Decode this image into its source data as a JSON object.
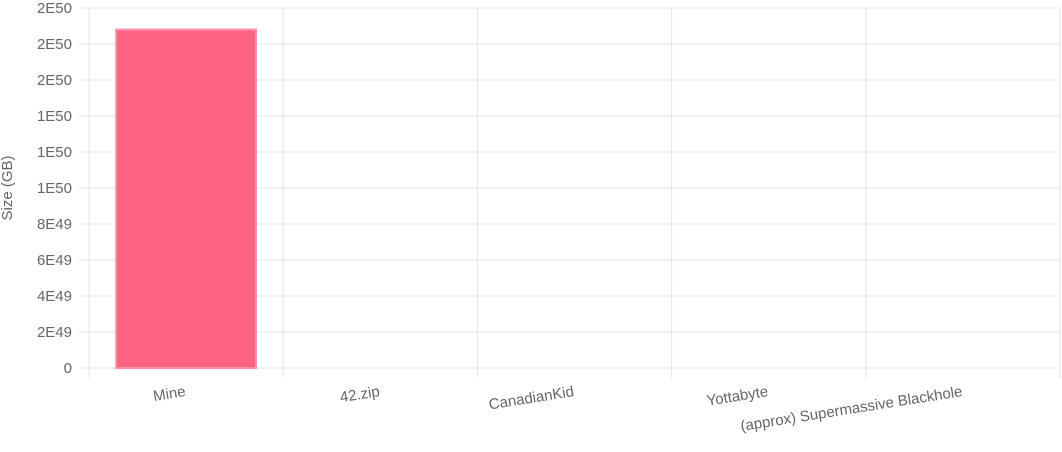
{
  "chart_data": {
    "type": "bar",
    "y_label": "Size (GB)",
    "categories": [
      "Mine",
      "42.zip",
      "CanadianKid",
      "Yottabyte",
      "(approx) Supermassive Blackhole"
    ],
    "values": [
      1.88e+50,
      0,
      0,
      0,
      0
    ],
    "color": "#ff6384",
    "ylim": [
      0,
      2e+50
    ],
    "yticks": [
      0,
      {
        "value": 2e+49,
        "label": "2E49"
      },
      {
        "value": 4e+49,
        "label": "4E49"
      },
      {
        "value": 6e+49,
        "label": "6E49"
      },
      {
        "value": 8e+49,
        "label": "8E49"
      },
      {
        "value": 1e+50,
        "label": "1E50"
      },
      {
        "value": 1.2e+50,
        "label": "1E50"
      },
      {
        "value": 1.4e+50,
        "label": "1E50"
      },
      {
        "value": 1.6e+50,
        "label": "2E50"
      },
      {
        "value": 1.8e+50,
        "label": "2E50"
      },
      {
        "value": 2e+50,
        "label": "2E50"
      }
    ],
    "grid": true
  }
}
